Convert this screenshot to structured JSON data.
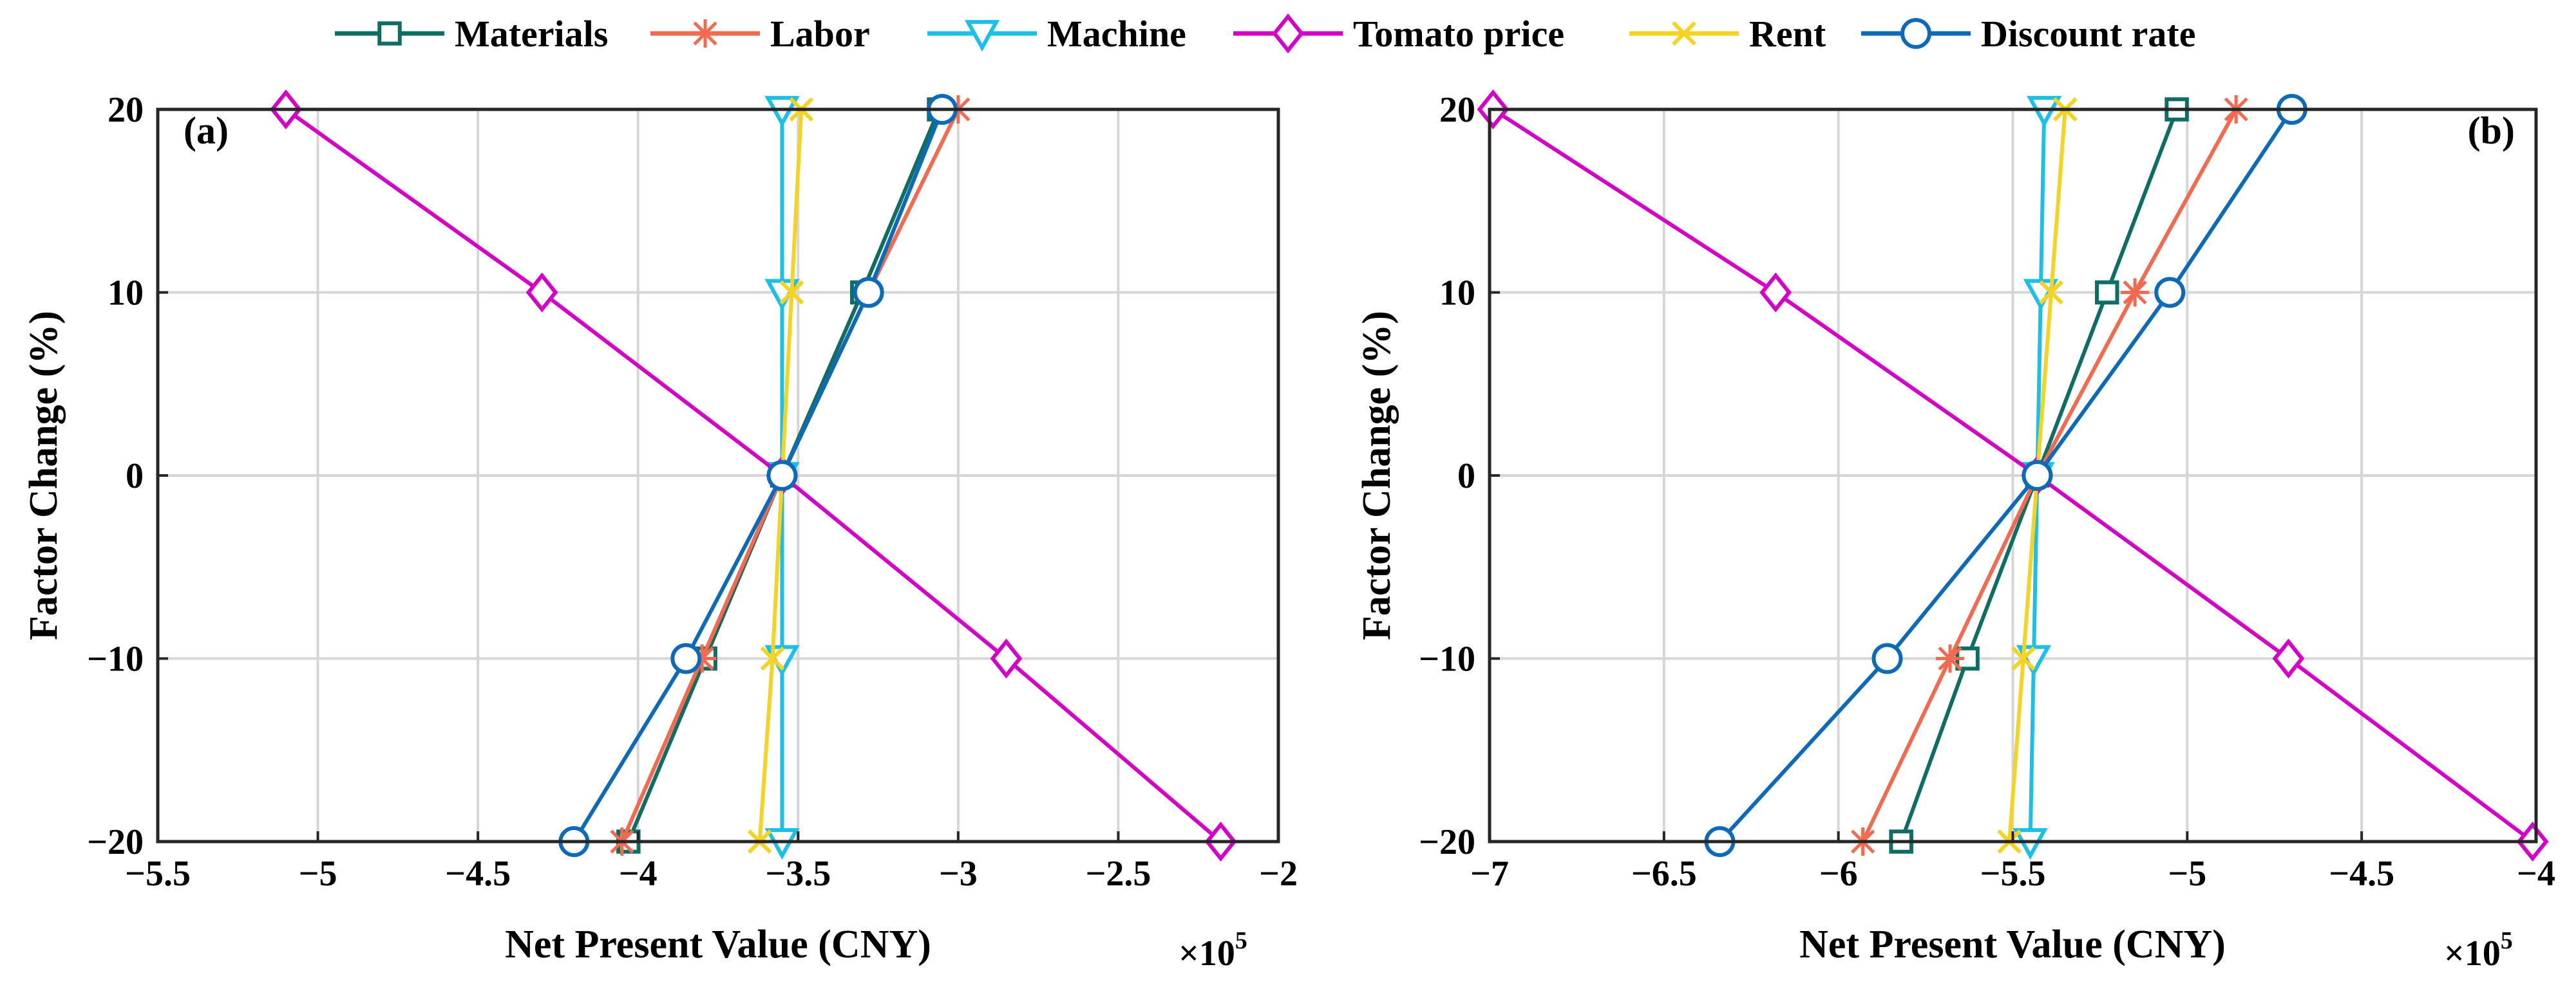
{
  "legend": [
    {
      "series": "Materials",
      "label": "Materials",
      "color": "#0e6e63",
      "marker": "square"
    },
    {
      "series": "Labor",
      "label": "Labor",
      "color": "#f26a4f",
      "marker": "asterisk"
    },
    {
      "series": "Machine",
      "label": "Machine",
      "color": "#1cbfe6",
      "marker": "triangle-down"
    },
    {
      "series": "Tomato price",
      "label": "Tomato price",
      "color": "#d400c8",
      "marker": "diamond"
    },
    {
      "series": "Rent",
      "label": "Rent",
      "color": "#f5d322",
      "marker": "x"
    },
    {
      "series": "Discount rate",
      "label": "Discount rate",
      "color": "#0d6ab8",
      "marker": "circle"
    }
  ],
  "chart_data": [
    {
      "type": "line",
      "panel_label": "(a)",
      "xlabel": "Net Present Value (CNY)",
      "ylabel": "Factor Change (%)",
      "x_exponent_base": "×10",
      "x_exponent_power": "5",
      "xlim": [
        -5.5,
        -2.0
      ],
      "ylim": [
        -20,
        20
      ],
      "xticks": [
        -5.5,
        -5,
        -4.5,
        -4,
        -3.5,
        -3,
        -2.5,
        -2
      ],
      "xtick_labels": [
        "−5.5",
        "−5",
        "−4.5",
        "−4",
        "−3.5",
        "−3",
        "−2.5",
        "−2"
      ],
      "yticks": [
        -20,
        -10,
        0,
        10,
        20
      ],
      "ytick_labels": [
        "−20",
        "−10",
        "0",
        "10",
        "20"
      ],
      "grid": true,
      "y": [
        -20,
        -10,
        0,
        10,
        20
      ],
      "series": [
        {
          "name": "Materials",
          "x": [
            -4.03,
            -3.79,
            -3.55,
            -3.3,
            -3.06
          ]
        },
        {
          "name": "Labor",
          "x": [
            -4.05,
            -3.8,
            -3.55,
            -3.28,
            -3.0
          ]
        },
        {
          "name": "Machine",
          "x": [
            -3.55,
            -3.55,
            -3.55,
            -3.55,
            -3.55
          ]
        },
        {
          "name": "Tomato price",
          "x": [
            -2.18,
            -2.85,
            -3.55,
            -4.3,
            -5.1
          ]
        },
        {
          "name": "Rent",
          "x": [
            -3.62,
            -3.58,
            -3.55,
            -3.52,
            -3.49
          ]
        },
        {
          "name": "Discount rate",
          "x": [
            -4.2,
            -3.85,
            -3.55,
            -3.28,
            -3.05
          ]
        }
      ]
    },
    {
      "type": "line",
      "panel_label": "(b)",
      "xlabel": "Net Present Value (CNY)",
      "ylabel": "Factor Change (%)",
      "x_exponent_base": "×10",
      "x_exponent_power": "5",
      "xlim": [
        -7.0,
        -4.0
      ],
      "ylim": [
        -20,
        20
      ],
      "xticks": [
        -7,
        -6.5,
        -6,
        -5.5,
        -5,
        -4.5,
        -4
      ],
      "xtick_labels": [
        "−7",
        "−6.5",
        "−6",
        "−5.5",
        "−5",
        "−4.5",
        "−4"
      ],
      "yticks": [
        -20,
        -10,
        0,
        10,
        20
      ],
      "ytick_labels": [
        "−20",
        "−10",
        "0",
        "10",
        "20"
      ],
      "grid": true,
      "y": [
        -20,
        -10,
        0,
        10,
        20
      ],
      "series": [
        {
          "name": "Materials",
          "x": [
            -5.82,
            -5.63,
            -5.43,
            -5.23,
            -5.03
          ]
        },
        {
          "name": "Labor",
          "x": [
            -5.93,
            -5.68,
            -5.43,
            -5.15,
            -4.86
          ]
        },
        {
          "name": "Machine",
          "x": [
            -5.45,
            -5.44,
            -5.43,
            -5.42,
            -5.41
          ]
        },
        {
          "name": "Tomato price",
          "x": [
            -4.01,
            -4.71,
            -5.43,
            -6.18,
            -6.99
          ]
        },
        {
          "name": "Rent",
          "x": [
            -5.51,
            -5.47,
            -5.43,
            -5.39,
            -5.35
          ]
        },
        {
          "name": "Discount rate",
          "x": [
            -6.34,
            -5.86,
            -5.43,
            -5.05,
            -4.7
          ]
        }
      ]
    }
  ]
}
